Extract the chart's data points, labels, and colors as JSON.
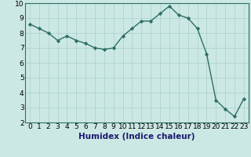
{
  "x": [
    0,
    1,
    2,
    3,
    4,
    5,
    6,
    7,
    8,
    9,
    10,
    11,
    12,
    13,
    14,
    15,
    16,
    17,
    18,
    19,
    20,
    21,
    22,
    23
  ],
  "y": [
    8.6,
    8.3,
    8.0,
    7.5,
    7.8,
    7.5,
    7.3,
    7.0,
    6.9,
    7.0,
    7.8,
    8.3,
    8.8,
    8.8,
    9.3,
    9.8,
    9.2,
    9.0,
    8.3,
    6.6,
    3.5,
    2.9,
    2.4,
    3.6
  ],
  "line_color": "#2d6e65",
  "marker": "D",
  "marker_size": 2.2,
  "bg_color": "#cce8e4",
  "grid_color": "#aacfcb",
  "xlabel": "Humidex (Indice chaleur)",
  "xlim": [
    -0.5,
    23.5
  ],
  "ylim": [
    2,
    10
  ],
  "xticks": [
    0,
    1,
    2,
    3,
    4,
    5,
    6,
    7,
    8,
    9,
    10,
    11,
    12,
    13,
    14,
    15,
    16,
    17,
    18,
    19,
    20,
    21,
    22,
    23
  ],
  "yticks": [
    2,
    3,
    4,
    5,
    6,
    7,
    8,
    9,
    10
  ],
  "xlabel_fontsize": 7.5,
  "tick_fontsize": 6.5,
  "line_width": 1.0,
  "spine_color": "#2d6e65"
}
